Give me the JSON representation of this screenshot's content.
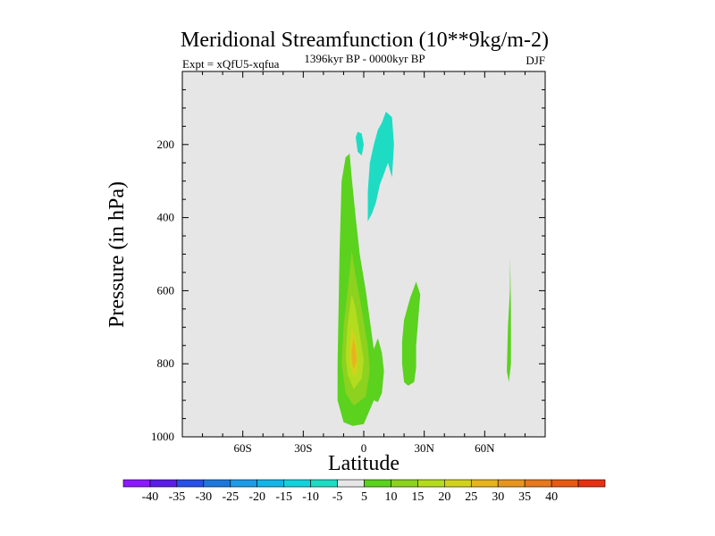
{
  "chart_data": {
    "type": "contour",
    "title": "Meridional Streamfunction (10**9kg/m-2)",
    "subtitle_left": "Expt = xQfU5-xqfua",
    "subtitle_center": "1396kyr BP - 0000kyr BP",
    "subtitle_right": "DJF",
    "xlabel": "Latitude",
    "ylabel": "Pressure (in hPa)",
    "xlim": [
      -90,
      90
    ],
    "ylim": [
      1000,
      0
    ],
    "x_ticks": [
      {
        "value": -60,
        "label": "60S"
      },
      {
        "value": -30,
        "label": "30S"
      },
      {
        "value": 0,
        "label": "0"
      },
      {
        "value": 30,
        "label": "30N"
      },
      {
        "value": 60,
        "label": "60N"
      }
    ],
    "x_minor_step": 10,
    "y_ticks": [
      {
        "value": 200,
        "label": "200"
      },
      {
        "value": 400,
        "label": "400"
      },
      {
        "value": 600,
        "label": "600"
      },
      {
        "value": 800,
        "label": "800"
      },
      {
        "value": 1000,
        "label": "1000"
      }
    ],
    "y_minor_step": 50,
    "colorbar": {
      "colors": [
        "#8c1aff",
        "#5a1ee6",
        "#2850e6",
        "#1e78dc",
        "#1e9be6",
        "#14b4e6",
        "#14d2dc",
        "#1edcc3",
        "#e6e6e6",
        "#5ad21e",
        "#8cd21e",
        "#b4dc1e",
        "#d2d21e",
        "#e6b41e",
        "#e6961e",
        "#e6781e",
        "#e65a14",
        "#e63214"
      ],
      "labels": [
        "-40",
        "-35",
        "-30",
        "-25",
        "-20",
        "-15",
        "-10",
        "-5",
        "5",
        "10",
        "15",
        "20",
        "25",
        "30",
        "35",
        "40"
      ]
    },
    "regions": [
      {
        "name": "sh-positive-cell-level-5",
        "level": 5,
        "polygon": [
          [
            -5.5,
            970
          ],
          [
            -10,
            960
          ],
          [
            -13,
            900
          ],
          [
            -13,
            800
          ],
          [
            -12,
            500
          ],
          [
            -11,
            300
          ],
          [
            -9,
            235
          ],
          [
            -7,
            225
          ],
          [
            -6,
            290
          ],
          [
            -4,
            400
          ],
          [
            -2,
            500
          ],
          [
            1,
            600
          ],
          [
            4,
            720
          ],
          [
            6,
            800
          ],
          [
            5,
            900
          ],
          [
            0,
            965
          ]
        ]
      },
      {
        "name": "sh-positive-cell-level-10",
        "level": 10,
        "polygon": [
          [
            -5,
            915
          ],
          [
            -9,
            880
          ],
          [
            -11,
            800
          ],
          [
            -10,
            700
          ],
          [
            -8,
            600
          ],
          [
            -6,
            490
          ],
          [
            -4,
            560
          ],
          [
            -1,
            650
          ],
          [
            2,
            750
          ],
          [
            3,
            820
          ],
          [
            1,
            890
          ]
        ]
      },
      {
        "name": "sh-positive-cell-level-15",
        "level": 15,
        "polygon": [
          [
            -5,
            870
          ],
          [
            -8,
            830
          ],
          [
            -9,
            780
          ],
          [
            -8,
            690
          ],
          [
            -6,
            610
          ],
          [
            -4,
            650
          ],
          [
            -2,
            720
          ],
          [
            0,
            790
          ],
          [
            -1,
            840
          ]
        ]
      },
      {
        "name": "sh-positive-cell-level-20",
        "level": 20,
        "polygon": [
          [
            -5,
            835
          ],
          [
            -7,
            800
          ],
          [
            -7,
            760
          ],
          [
            -6,
            700
          ],
          [
            -4,
            730
          ],
          [
            -3,
            780
          ],
          [
            -3,
            820
          ]
        ]
      },
      {
        "name": "sh-positive-cell-level-25",
        "level": 25,
        "polygon": [
          [
            -5,
            815
          ],
          [
            -6,
            790
          ],
          [
            -6,
            760
          ],
          [
            -5,
            730
          ],
          [
            -4,
            760
          ],
          [
            -3.5,
            790
          ]
        ]
      },
      {
        "name": "equatorial-positive-cell",
        "level": 5,
        "polygon": [
          [
            5,
            900
          ],
          [
            4,
            840
          ],
          [
            4,
            800
          ],
          [
            5,
            760
          ],
          [
            7,
            730
          ],
          [
            9,
            770
          ],
          [
            10,
            820
          ],
          [
            9,
            880
          ],
          [
            7,
            905
          ]
        ]
      },
      {
        "name": "nh-subtropical-positive-cell",
        "level": 5,
        "polygon": [
          [
            20,
            850
          ],
          [
            19,
            800
          ],
          [
            19,
            740
          ],
          [
            20,
            680
          ],
          [
            23,
            620
          ],
          [
            26,
            575
          ],
          [
            28,
            610
          ],
          [
            27,
            680
          ],
          [
            26,
            750
          ],
          [
            26,
            810
          ],
          [
            25,
            850
          ],
          [
            22,
            860
          ]
        ]
      },
      {
        "name": "nh-highlat-positive-cell",
        "level": 5,
        "polygon": [
          [
            72.6,
            510
          ],
          [
            72.5,
            600
          ],
          [
            71.5,
            700
          ],
          [
            71,
            820
          ],
          [
            72,
            850
          ],
          [
            73,
            800
          ],
          [
            73,
            650
          ]
        ]
      },
      {
        "name": "upper-negative-cell",
        "level": -5,
        "polygon": [
          [
            2,
            410
          ],
          [
            2,
            330
          ],
          [
            3,
            250
          ],
          [
            5,
            200
          ],
          [
            7,
            160
          ],
          [
            9,
            140
          ],
          [
            11,
            110
          ],
          [
            14,
            125
          ],
          [
            15,
            200
          ],
          [
            14,
            290
          ],
          [
            12,
            250
          ],
          [
            10,
            280
          ],
          [
            8,
            310
          ],
          [
            6,
            360
          ],
          [
            4,
            390
          ]
        ]
      },
      {
        "name": "upper-negative-patch",
        "level": -5,
        "polygon": [
          [
            -3,
            220
          ],
          [
            -4,
            180
          ],
          [
            -3,
            165
          ],
          [
            -1,
            170
          ],
          [
            0,
            200
          ],
          [
            -1,
            230
          ]
        ]
      }
    ]
  }
}
